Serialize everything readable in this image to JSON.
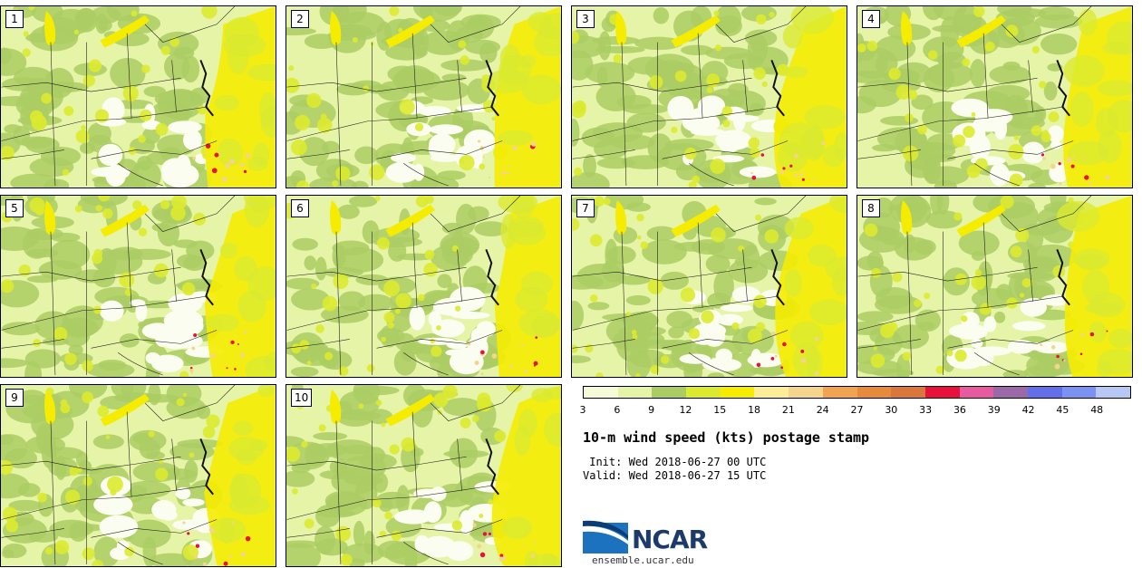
{
  "panels": [
    {
      "label": "1"
    },
    {
      "label": "2"
    },
    {
      "label": "3"
    },
    {
      "label": "4"
    },
    {
      "label": "5"
    },
    {
      "label": "6"
    },
    {
      "label": "7"
    },
    {
      "label": "8"
    },
    {
      "label": "9"
    },
    {
      "label": "10"
    }
  ],
  "colorbar": {
    "ticks": [
      "3",
      "6",
      "9",
      "12",
      "15",
      "18",
      "21",
      "24",
      "27",
      "30",
      "33",
      "36",
      "39",
      "42",
      "45",
      "48"
    ],
    "colors": [
      "#f5fbd6",
      "#e6f4a8",
      "#aacd63",
      "#dbea2f",
      "#f5ec00",
      "#fcee98",
      "#f5d48d",
      "#eea450",
      "#e68a3c",
      "#d9773c",
      "#e8113c",
      "#e65aa0",
      "#9b69a8",
      "#636ee9",
      "#7c92f3",
      "#b8c8f4"
    ]
  },
  "title": "10-m wind speed (kts) postage stamp",
  "init": " Init: Wed 2018-06-27 00 UTC",
  "valid": "Valid: Wed 2018-06-27 15 UTC",
  "logo": {
    "text": "NCAR",
    "url": "ensemble.ucar.edu"
  }
}
